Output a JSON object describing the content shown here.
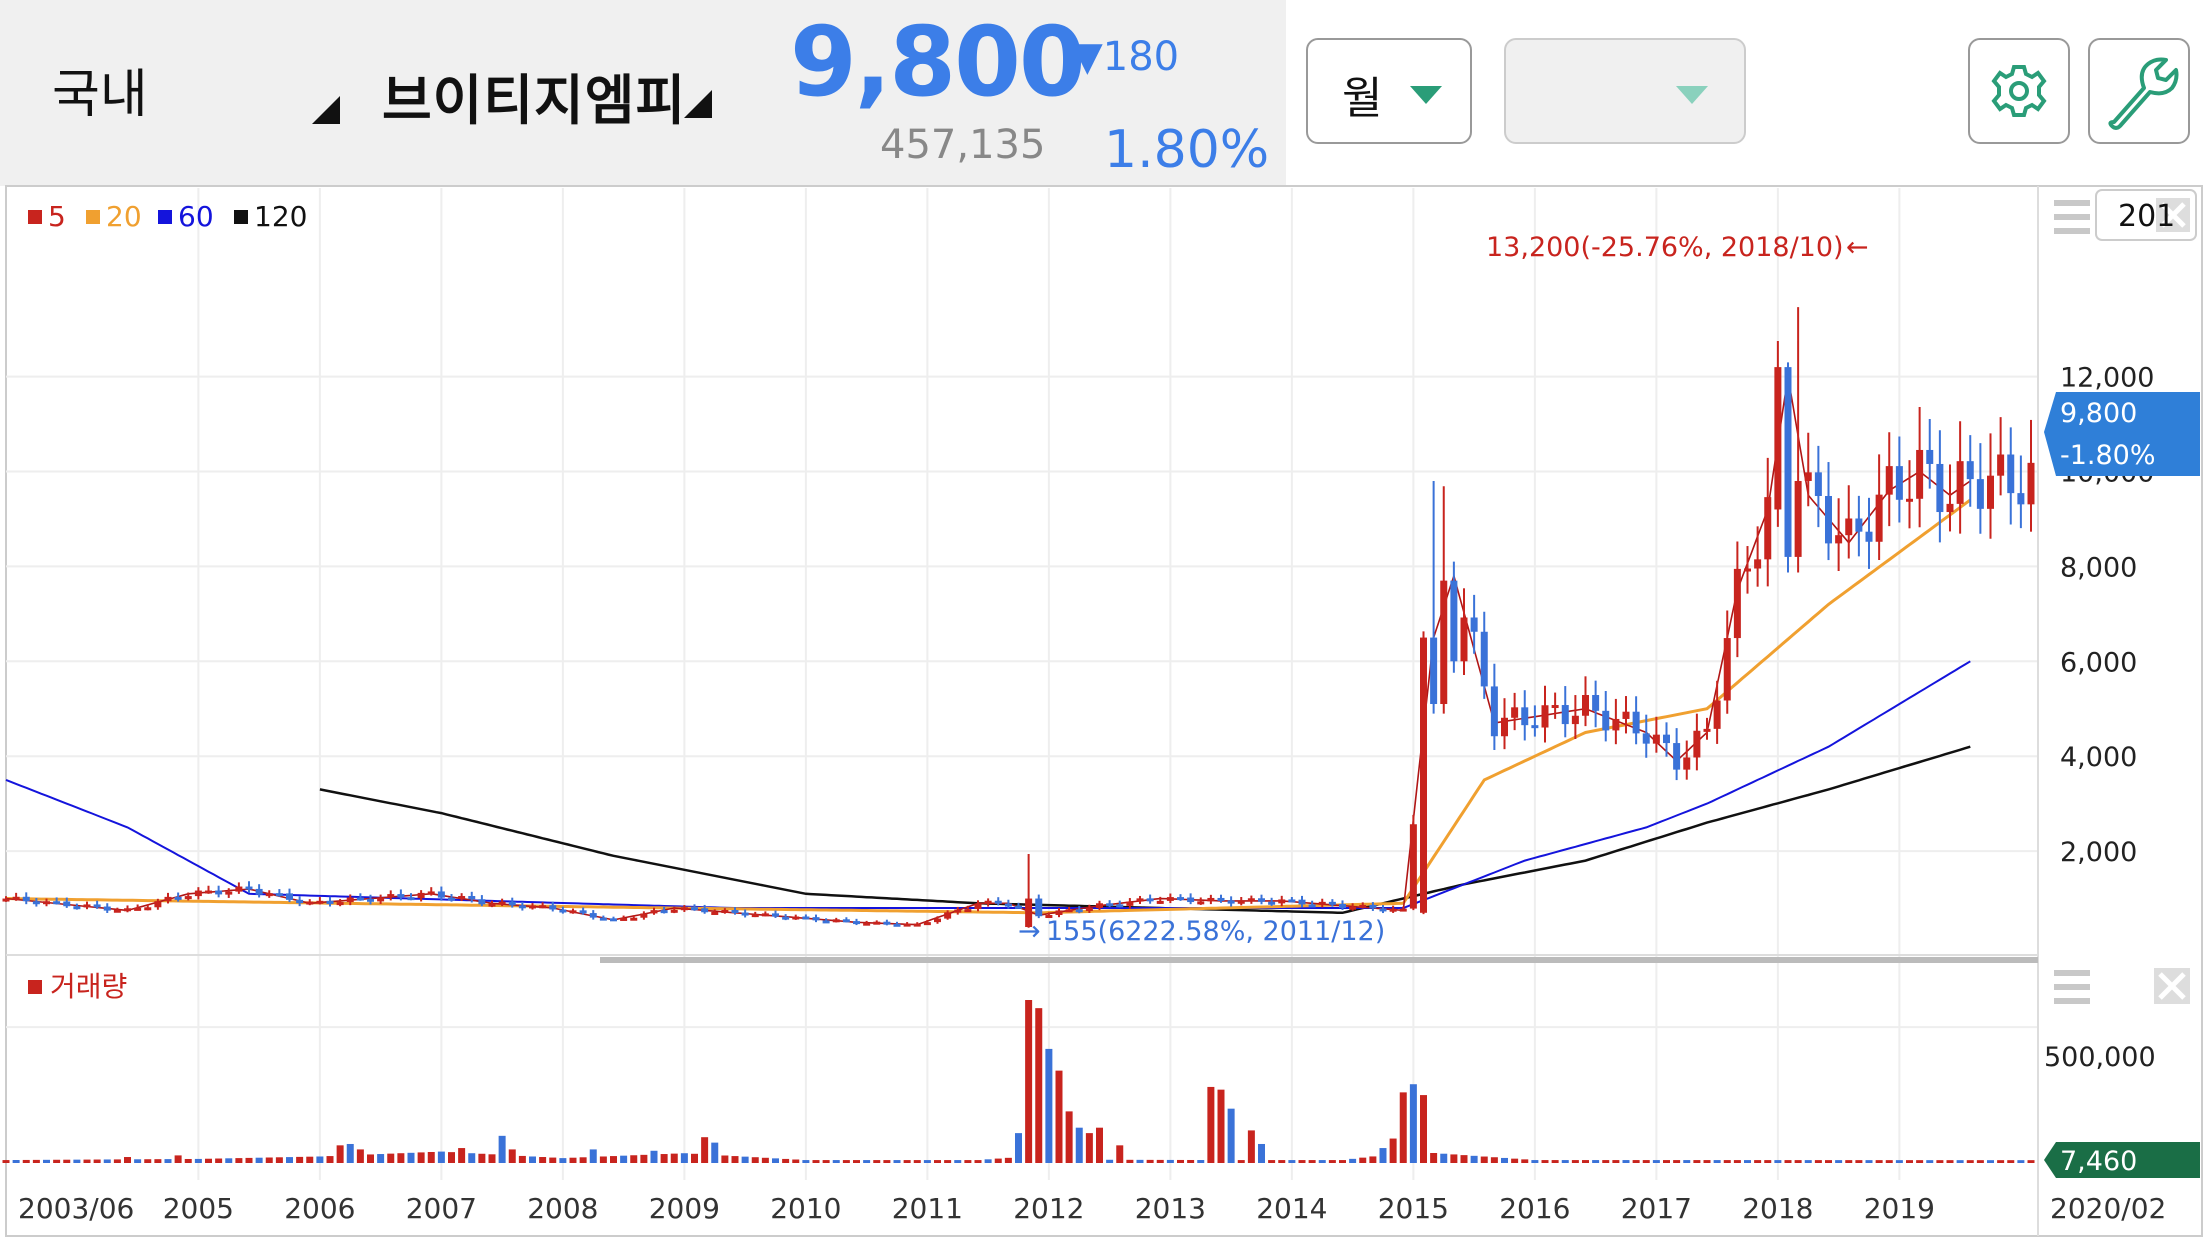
{
  "header": {
    "market_label": "국내",
    "stock_name": "브이티지엠피",
    "price": "9,800",
    "change": "▼180",
    "volume": "457,135",
    "change_rate": "1.80%",
    "period_label": "월",
    "secondary_dropdown_value": ""
  },
  "colors": {
    "up": "#c8241e",
    "down": "#3a72d8",
    "ma5": "#b01515",
    "ma20": "#f0a030",
    "ma60": "#1414dc",
    "ma120": "#111111",
    "accent": "#3c7ee8"
  },
  "icons": [
    "settings-gear-icon",
    "wrench-icon",
    "menu-icon",
    "close-icon",
    "triangle-down-icon"
  ],
  "chart_data": {
    "type": "candlestick",
    "interval": "monthly",
    "legend": [
      {
        "name": "5",
        "color": "#c8241e"
      },
      {
        "name": "20",
        "color": "#f0a030"
      },
      {
        "name": "60",
        "color": "#1414dc"
      },
      {
        "name": "120",
        "color": "#111111"
      }
    ],
    "legend_placement": "top-left",
    "period_input_value": "201",
    "x_ticks": [
      "2003/06",
      "2005",
      "2006",
      "2007",
      "2008",
      "2009",
      "2010",
      "2011",
      "2012",
      "2013",
      "2014",
      "2015",
      "2016",
      "2017",
      "2018",
      "2019",
      "2020/02"
    ],
    "y_ticks": [
      "12,000",
      "10,000",
      "8,000",
      "6,000",
      "4,000",
      "2,000"
    ],
    "ylim": [
      0,
      15000
    ],
    "current_price_label": "9,800",
    "current_rate_label": "-1.80%",
    "high_annotation": "13,200(-25.76%, 2018/10)",
    "low_annotation": "155(6222.58%, 2011/12)",
    "high_marker": {
      "date": "2018/10",
      "value": 13200
    },
    "low_marker": {
      "date": "2011/12",
      "value": 155
    },
    "price_anchors": [
      [
        "2003/06",
        1000
      ],
      [
        "2004/06",
        750
      ],
      [
        "2004/12",
        1100
      ],
      [
        "2005/06",
        1200
      ],
      [
        "2005/12",
        900
      ],
      [
        "2006/06",
        1000
      ],
      [
        "2006/12",
        1100
      ],
      [
        "2007/06",
        900
      ],
      [
        "2007/12",
        800
      ],
      [
        "2008/06",
        550
      ],
      [
        "2008/12",
        800
      ],
      [
        "2009/06",
        700
      ],
      [
        "2009/12",
        600
      ],
      [
        "2010/06",
        500
      ],
      [
        "2010/12",
        450
      ],
      [
        "2011/06",
        900
      ],
      [
        "2011/09",
        900
      ],
      [
        "2011/12",
        650
      ],
      [
        "2012/06",
        850
      ],
      [
        "2012/12",
        1000
      ],
      [
        "2013/06",
        950
      ],
      [
        "2013/12",
        950
      ],
      [
        "2014/06",
        850
      ],
      [
        "2014/12",
        750
      ],
      [
        "2015/03",
        6500
      ],
      [
        "2015/05",
        7800
      ],
      [
        "2015/09",
        4700
      ],
      [
        "2016/06",
        5000
      ],
      [
        "2016/12",
        4500
      ],
      [
        "2017/03",
        3900
      ],
      [
        "2017/06",
        4500
      ],
      [
        "2017/09",
        7500
      ],
      [
        "2017/12",
        9200
      ],
      [
        "2018/02",
        12000
      ],
      [
        "2018/04",
        9500
      ],
      [
        "2018/08",
        8500
      ],
      [
        "2018/12",
        9600
      ],
      [
        "2019/03",
        10000
      ],
      [
        "2019/06",
        9500
      ],
      [
        "2019/08",
        9800
      ]
    ],
    "ma_anchors": {
      "ma20": [
        [
          "2003/06",
          1000
        ],
        [
          "2008/12",
          800
        ],
        [
          "2011/12",
          700
        ],
        [
          "2014/12",
          900
        ],
        [
          "2015/08",
          3500
        ],
        [
          "2016/06",
          4500
        ],
        [
          "2017/06",
          5000
        ],
        [
          "2018/06",
          7200
        ],
        [
          "2019/08",
          9400
        ]
      ],
      "ma60": [
        [
          "2003/06",
          3500
        ],
        [
          "2004/06",
          2500
        ],
        [
          "2005/06",
          1100
        ],
        [
          "2007/06",
          950
        ],
        [
          "2009/06",
          800
        ],
        [
          "2011/12",
          800
        ],
        [
          "2014/12",
          800
        ],
        [
          "2015/12",
          1800
        ],
        [
          "2016/12",
          2500
        ],
        [
          "2017/06",
          3000
        ],
        [
          "2018/06",
          4200
        ],
        [
          "2019/08",
          6000
        ]
      ],
      "ma120": [
        [
          "2006/01",
          3300
        ],
        [
          "2007/01",
          2800
        ],
        [
          "2008/06",
          1900
        ],
        [
          "2010/01",
          1100
        ],
        [
          "2011/06",
          900
        ],
        [
          "2014/06",
          700
        ],
        [
          "2015/06",
          1300
        ],
        [
          "2016/06",
          1800
        ],
        [
          "2017/06",
          2600
        ],
        [
          "2018/06",
          3300
        ],
        [
          "2019/08",
          4200
        ]
      ]
    },
    "volume_panel": {
      "legend": "거래량",
      "y_ticks": [
        "500,000"
      ],
      "current_volume_label": "7,460",
      "ylim": [
        0,
        700000
      ],
      "volume_anchors": [
        [
          "2003/06",
          8000
        ],
        [
          "2005/01",
          15000
        ],
        [
          "2006/01",
          30000
        ],
        [
          "2007/01",
          60000
        ],
        [
          "2008/01",
          20000
        ],
        [
          "2009/01",
          50000
        ],
        [
          "2010/01",
          8000
        ],
        [
          "2011/06",
          8000
        ],
        [
          "2012/01",
          40000
        ],
        [
          "2012/06",
          10000
        ],
        [
          "2013/06",
          8000
        ],
        [
          "2014/06",
          8000
        ],
        [
          "2015/01",
          60000
        ],
        [
          "2016/01",
          8000
        ],
        [
          "2017/06",
          8000
        ],
        [
          "2019/08",
          7460
        ]
      ],
      "volume_spikes": [
        [
          "2004/06",
          22000
        ],
        [
          "2004/11",
          28000
        ],
        [
          "2006/03",
          65000
        ],
        [
          "2006/04",
          70000
        ],
        [
          "2006/05",
          50000
        ],
        [
          "2007/03",
          55000
        ],
        [
          "2007/07",
          100000
        ],
        [
          "2007/08",
          50000
        ],
        [
          "2008/04",
          50000
        ],
        [
          "2008/10",
          45000
        ],
        [
          "2009/03",
          95000
        ],
        [
          "2009/04",
          75000
        ],
        [
          "2011/10",
          110000
        ],
        [
          "2011/11",
          600000
        ],
        [
          "2011/12",
          570000
        ],
        [
          "2012/01",
          420000
        ],
        [
          "2012/02",
          340000
        ],
        [
          "2012/03",
          190000
        ],
        [
          "2012/04",
          130000
        ],
        [
          "2012/05",
          110000
        ],
        [
          "2012/06",
          130000
        ],
        [
          "2012/08",
          65000
        ],
        [
          "2013/05",
          280000
        ],
        [
          "2013/06",
          270000
        ],
        [
          "2013/07",
          200000
        ],
        [
          "2013/09",
          120000
        ],
        [
          "2013/10",
          70000
        ],
        [
          "2014/10",
          55000
        ],
        [
          "2014/11",
          90000
        ],
        [
          "2014/12",
          260000
        ],
        [
          "2015/01",
          290000
        ],
        [
          "2015/02",
          250000
        ]
      ]
    }
  }
}
